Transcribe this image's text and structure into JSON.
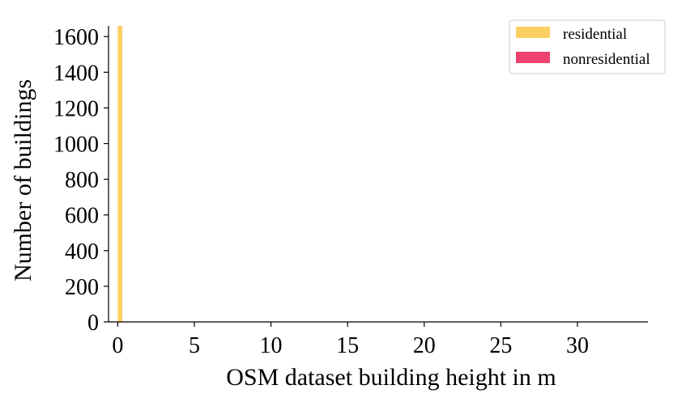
{
  "chart_data": {
    "type": "bar",
    "title": "",
    "xlabel": "OSM dataset building height in m",
    "ylabel": "Number of buildings",
    "xlim": [
      -0.6,
      34.6
    ],
    "ylim": [
      0,
      1660
    ],
    "xticks": [
      0,
      5,
      10,
      15,
      20,
      25,
      30
    ],
    "yticks": [
      0,
      200,
      400,
      600,
      800,
      1000,
      1200,
      1400,
      1600
    ],
    "grid": false,
    "legend_position": "top-right",
    "series": [
      {
        "name": "residential",
        "color": "#fbcf62",
        "bins": [
          {
            "x0": 0.0,
            "x1": 0.3,
            "value": 1660
          }
        ]
      },
      {
        "name": "nonresidential",
        "color": "#ee426e",
        "bins": []
      }
    ]
  }
}
